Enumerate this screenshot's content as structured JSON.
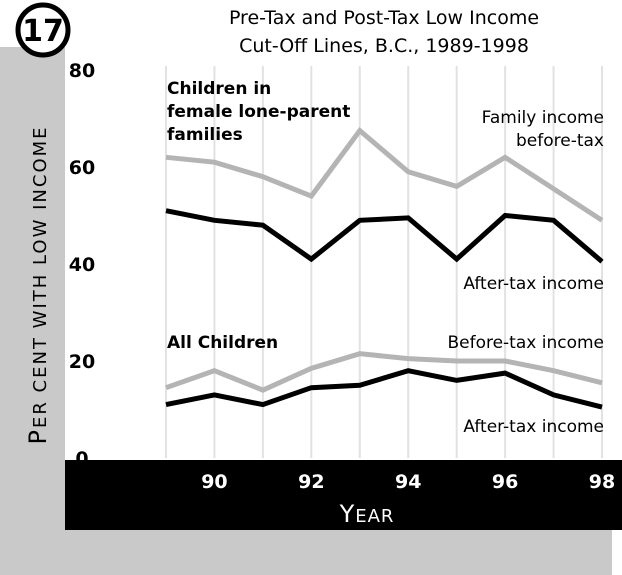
{
  "badge": "17",
  "chart_data": {
    "type": "line",
    "title_lines": [
      "Pre-Tax and Post-Tax Low Income",
      "Cut-Off Lines, B.C., 1989-1998"
    ],
    "xlabel": "Year",
    "ylabel": "Per cent with low income",
    "xlim": [
      1989,
      1998
    ],
    "ylim": [
      0,
      80
    ],
    "grid": "vertical lines at each year",
    "x": [
      1989,
      1990,
      1991,
      1992,
      1993,
      1994,
      1995,
      1996,
      1997,
      1998
    ],
    "x_tick_values": [
      1990,
      1992,
      1994,
      1996,
      1998
    ],
    "x_tick_labels": [
      "90",
      "92",
      "94",
      "96",
      "98"
    ],
    "y_ticks": [
      0,
      20,
      40,
      60,
      80
    ],
    "y_tick_labels": [
      "0",
      "20",
      "40",
      "60",
      "80"
    ],
    "groups": [
      {
        "label_lines": [
          "Children in",
          "female lone-parent",
          "families"
        ]
      },
      {
        "label_lines": [
          "All Children"
        ]
      }
    ],
    "series": [
      {
        "name_lines": [
          "Family income",
          "before-tax"
        ],
        "group": 0,
        "color": "#b4b4b4",
        "values": [
          62,
          61,
          58,
          54,
          67.5,
          59,
          56,
          62,
          55.5,
          49
        ]
      },
      {
        "name_lines": [
          "After-tax income"
        ],
        "group": 0,
        "color": "#000000",
        "values": [
          51,
          49,
          48,
          41,
          49,
          49.5,
          41,
          50,
          49,
          40.5
        ]
      },
      {
        "name_lines": [
          "Before-tax income"
        ],
        "group": 1,
        "color": "#b4b4b4",
        "values": [
          14.5,
          18,
          14,
          18.5,
          21.5,
          20.5,
          20,
          20,
          18,
          15.5
        ]
      },
      {
        "name_lines": [
          "After-tax income"
        ],
        "group": 1,
        "color": "#000000",
        "values": [
          11,
          13,
          11,
          14.5,
          15,
          18,
          16,
          17.5,
          13,
          10.5
        ]
      }
    ]
  }
}
